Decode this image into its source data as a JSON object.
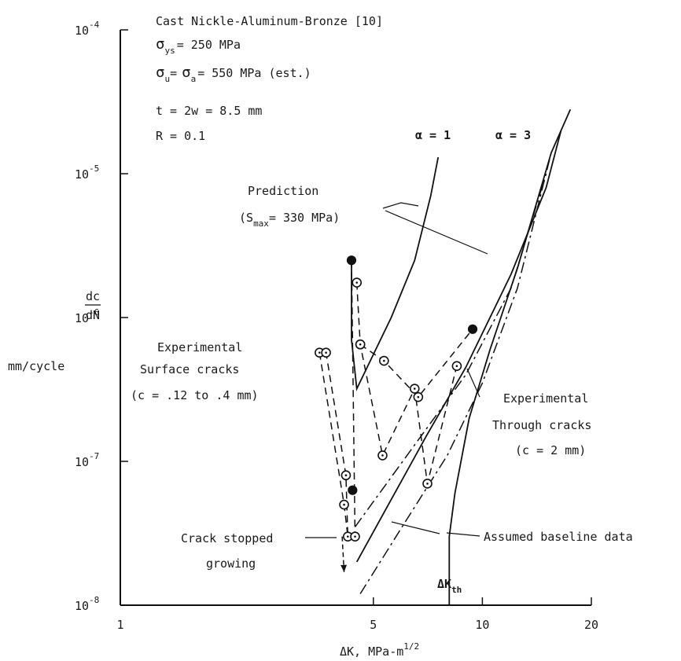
{
  "chart_data": {
    "type": "line",
    "x_scale": "log",
    "y_scale": "log",
    "xlim": [
      1,
      20
    ],
    "ylim": [
      1e-08,
      0.0001
    ],
    "xlabel": "ΔK, MPa-m",
    "xlabel_exp": "1/2",
    "ylabel_top": "dc",
    "ylabel_bottom": "dN",
    "ylabel_units": "mm/cycle",
    "x_ticks": [
      {
        "value": 1,
        "label": "1"
      },
      {
        "value": 5,
        "label": "5"
      },
      {
        "value": 10,
        "label": "10"
      },
      {
        "value": 20,
        "label": "20"
      }
    ],
    "y_ticks": [
      {
        "value": 1e-08,
        "base": "10",
        "exp": "-8"
      },
      {
        "value": 1e-07,
        "base": "10",
        "exp": "-7"
      },
      {
        "value": 1e-06,
        "base": "10",
        "exp": "-6"
      },
      {
        "value": 1e-05,
        "base": "10",
        "exp": "-5"
      },
      {
        "value": 0.0001,
        "base": "10",
        "exp": "-4"
      }
    ],
    "info": {
      "line1": "Cast Nickle-Aluminum-Bronze [10]",
      "sys_sym": "σ",
      "sys_sub": "ys",
      "sys_val": "= 250 MPa",
      "su_sym": "σ",
      "su_sub": "u",
      "su_eq": "=",
      "sa_sym": "σ",
      "sa_sub": "a",
      "sa_val": "= 550 MPa (est.)",
      "line4": "t = 2w = 8.5 mm",
      "line5": "R = 0.1"
    },
    "series": [
      {
        "style": "solid",
        "points": [
          [
            4.35,
            2.5e-06
          ],
          [
            4.35,
            7e-07
          ],
          [
            4.5,
            3.2e-07
          ],
          [
            5.6,
            1e-06
          ],
          [
            6.5,
            2.5e-06
          ],
          [
            7.2,
            7e-06
          ],
          [
            7.55,
            1.3e-05
          ]
        ]
      },
      {
        "style": "solid",
        "points": [
          [
            4.5,
            2e-08
          ],
          [
            5.5,
            5e-08
          ],
          [
            7,
            1.5e-07
          ],
          [
            9,
            4.5e-07
          ],
          [
            12,
            2e-06
          ],
          [
            15,
            8e-06
          ],
          [
            16.5,
            2e-05
          ]
        ]
      },
      {
        "style": "dashdot",
        "points": [
          [
            4.45,
            3.5e-08
          ],
          [
            6.5,
            1.3e-07
          ],
          [
            9,
            4e-07
          ],
          [
            12,
            1.6e-06
          ],
          [
            15,
            1e-05
          ]
        ]
      },
      {
        "style": "dashdot",
        "points": [
          [
            4.6,
            1.2e-08
          ],
          [
            6,
            3.5e-08
          ],
          [
            8,
            1.1e-07
          ],
          [
            10,
            3.5e-07
          ],
          [
            12.5,
            1.6e-06
          ],
          [
            15.5,
            1.4e-05
          ]
        ]
      },
      {
        "style": "solid",
        "points": [
          [
            8.1,
            1e-08
          ],
          [
            8.1,
            3e-08
          ],
          [
            8.4,
            6e-08
          ],
          [
            9.2,
            2e-07
          ],
          [
            10.5,
            6e-07
          ],
          [
            12.5,
            2.2e-06
          ],
          [
            15.5,
            1.4e-05
          ],
          [
            17.5,
            2.8e-05
          ]
        ]
      },
      {
        "style": "dashed",
        "marker": "open",
        "points": [
          [
            3.55,
            5.7e-07
          ],
          [
            4.15,
            5e-08
          ],
          [
            4.25,
            3e-08
          ],
          [
            4.2,
            8e-08
          ],
          [
            3.7,
            5.7e-07
          ]
        ]
      },
      {
        "style": "dashed",
        "marker": "open",
        "points": [
          [
            4.5,
            1.75e-06
          ],
          [
            4.6,
            6.5e-07
          ],
          [
            5.3,
            1.1e-07
          ],
          [
            6.5,
            3.2e-07
          ],
          [
            7.05,
            7e-08
          ],
          [
            8.5,
            4.6e-07
          ]
        ]
      },
      {
        "style": "dashed",
        "marker": "open",
        "points": [
          [
            4.6,
            6.5e-07
          ],
          [
            5.35,
            5e-07
          ],
          [
            6.65,
            2.8e-07
          ],
          [
            9.4,
            8.3e-07
          ]
        ]
      },
      {
        "style": "dashed",
        "marker": "mixed",
        "points": [
          [
            4.35,
            2.5e-06
          ],
          [
            4.45,
            3e-08
          ]
        ]
      }
    ],
    "filled_points": [
      [
        4.35,
        2.5e-06
      ],
      [
        4.38,
        6.3e-08
      ],
      [
        9.4,
        8.3e-07
      ]
    ],
    "arrows": [
      {
        "from": [
          4.1,
          3e-08
        ],
        "to": [
          4.15,
          1.7e-08
        ]
      }
    ],
    "annotations": {
      "alpha1": "α = 1",
      "alpha3": "α = 3",
      "prediction": "Prediction",
      "smax_sym": "(S",
      "smax_sub": "max",
      "smax_val": "= 330 MPa)",
      "exp_surf_1": "Experimental",
      "exp_surf_2": "Surface cracks",
      "exp_surf_3": "(c = .12 to .4 mm)",
      "exp_thru_1": "Experimental",
      "exp_thru_2": "Through cracks",
      "exp_thru_3": "(c = 2 mm)",
      "stopped_1": "Crack stopped",
      "stopped_2": "growing",
      "baseline": "Assumed baseline data",
      "dkth": "ΔK",
      "dkth_sub": "th"
    }
  }
}
